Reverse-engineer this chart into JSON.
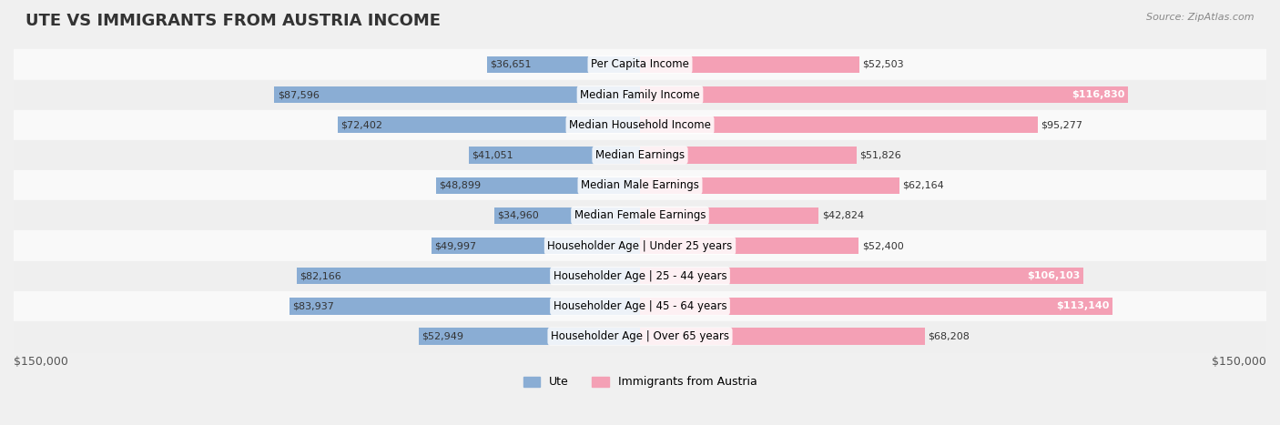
{
  "title": "UTE VS IMMIGRANTS FROM AUSTRIA INCOME",
  "source": "Source: ZipAtlas.com",
  "categories": [
    "Per Capita Income",
    "Median Family Income",
    "Median Household Income",
    "Median Earnings",
    "Median Male Earnings",
    "Median Female Earnings",
    "Householder Age | Under 25 years",
    "Householder Age | 25 - 44 years",
    "Householder Age | 45 - 64 years",
    "Householder Age | Over 65 years"
  ],
  "ute_values": [
    36651,
    87596,
    72402,
    41051,
    48899,
    34960,
    49997,
    82166,
    83937,
    52949
  ],
  "austria_values": [
    52503,
    116830,
    95277,
    51826,
    62164,
    42824,
    52400,
    106103,
    113140,
    68208
  ],
  "ute_labels": [
    "$36,651",
    "$87,596",
    "$72,402",
    "$41,051",
    "$48,899",
    "$34,960",
    "$49,997",
    "$82,166",
    "$83,937",
    "$52,949"
  ],
  "austria_labels": [
    "$52,503",
    "$116,830",
    "$95,277",
    "$51,826",
    "$62,164",
    "$42,824",
    "$52,400",
    "$106,103",
    "$113,140",
    "$68,208"
  ],
  "ute_color": "#8aadd4",
  "austria_color": "#f4a0b5",
  "ute_color_dark": "#5b8fc9",
  "austria_color_dark": "#e8637f",
  "max_value": 150000,
  "bar_height": 0.55,
  "background_color": "#f5f5f5",
  "row_bg_light": "#f9f9f9",
  "row_bg_dark": "#efefef",
  "legend_ute": "Ute",
  "legend_austria": "Immigrants from Austria",
  "xlabel_left": "$150,000",
  "xlabel_right": "$150,000"
}
